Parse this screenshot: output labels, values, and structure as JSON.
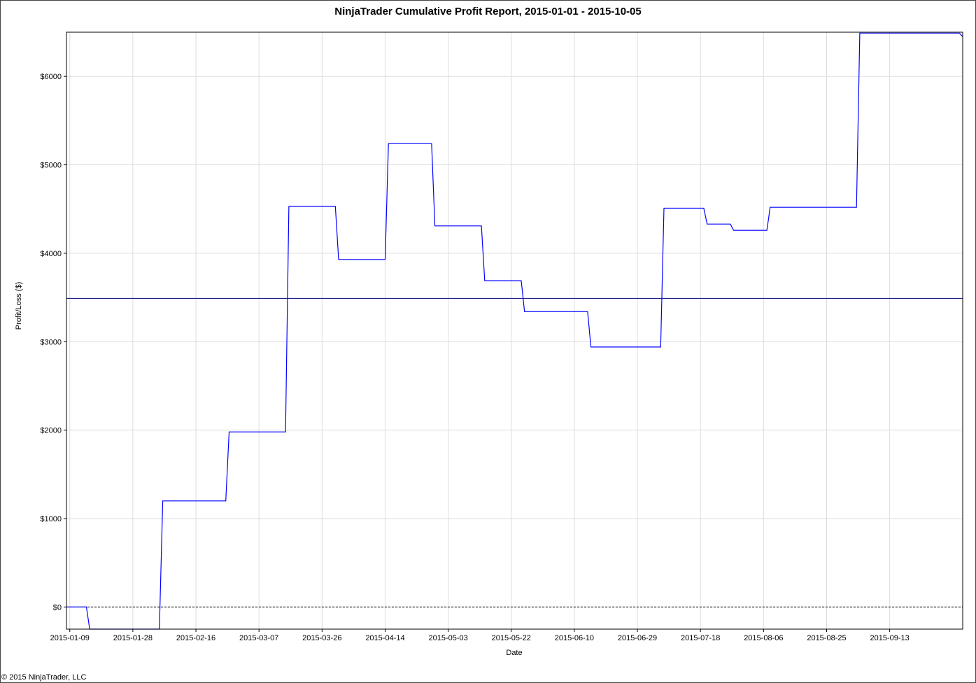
{
  "title": "NinjaTrader Cumulative Profit Report, 2015-01-01 - 2015-10-05",
  "footer": "© 2015 NinjaTrader, LLC",
  "chart_data": {
    "type": "line",
    "title": "NinjaTrader Cumulative Profit Report, 2015-01-01 - 2015-10-05",
    "xlabel": "Date",
    "ylabel": "Profit/Loss ($)",
    "xlim": [
      "2015-01-08",
      "2015-10-05"
    ],
    "ylim": [
      -250,
      6500
    ],
    "x_ticks": [
      "2015-01-09",
      "2015-01-28",
      "2015-02-16",
      "2015-03-07",
      "2015-03-26",
      "2015-04-14",
      "2015-05-03",
      "2015-05-22",
      "2015-06-10",
      "2015-06-29",
      "2015-07-18",
      "2015-08-06",
      "2015-08-25",
      "2015-09-13"
    ],
    "y_ticks": [
      0,
      1000,
      2000,
      3000,
      4000,
      5000,
      6000
    ],
    "y_tick_labels": [
      "$0",
      "$1000",
      "$2000",
      "$3000",
      "$4000",
      "$5000",
      "$6000"
    ],
    "grid": true,
    "reference_lines": [
      {
        "y": 0,
        "style": "dashed",
        "color": "#000000"
      },
      {
        "y": 3490,
        "style": "solid",
        "color": "#000080"
      }
    ],
    "series": [
      {
        "color": "#0000ff",
        "points": [
          [
            "2015-01-08",
            0
          ],
          [
            "2015-01-14",
            0
          ],
          [
            "2015-01-15",
            -250
          ],
          [
            "2015-02-05",
            -250
          ],
          [
            "2015-02-06",
            1200
          ],
          [
            "2015-02-25",
            1200
          ],
          [
            "2015-02-26",
            1980
          ],
          [
            "2015-03-15",
            1980
          ],
          [
            "2015-03-16",
            4530
          ],
          [
            "2015-03-30",
            4530
          ],
          [
            "2015-03-31",
            3930
          ],
          [
            "2015-04-14",
            3930
          ],
          [
            "2015-04-15",
            5240
          ],
          [
            "2015-04-28",
            5240
          ],
          [
            "2015-04-29",
            4310
          ],
          [
            "2015-05-13",
            4310
          ],
          [
            "2015-05-14",
            3690
          ],
          [
            "2015-05-25",
            3690
          ],
          [
            "2015-05-26",
            3340
          ],
          [
            "2015-06-14",
            3340
          ],
          [
            "2015-06-15",
            2940
          ],
          [
            "2015-07-06",
            2940
          ],
          [
            "2015-07-07",
            4510
          ],
          [
            "2015-07-19",
            4510
          ],
          [
            "2015-07-20",
            4330
          ],
          [
            "2015-07-27",
            4330
          ],
          [
            "2015-07-28",
            4260
          ],
          [
            "2015-08-07",
            4260
          ],
          [
            "2015-08-08",
            4520
          ],
          [
            "2015-09-03",
            4520
          ],
          [
            "2015-09-04",
            6490
          ],
          [
            "2015-10-04",
            6490
          ],
          [
            "2015-10-05",
            6450
          ]
        ]
      }
    ]
  }
}
